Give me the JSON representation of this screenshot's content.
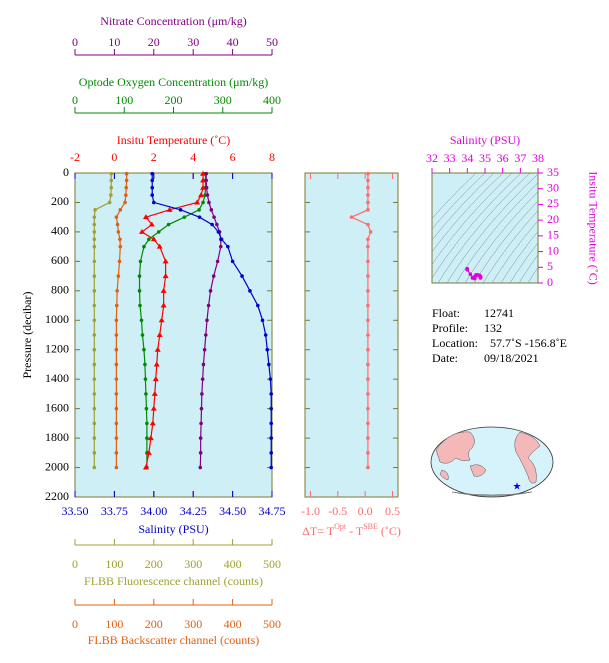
{
  "chart_data": [
    {
      "type": "profile",
      "ylabel": "Pressure (decibar)",
      "pressure": [
        5,
        50,
        100,
        150,
        200,
        250,
        300,
        350,
        400,
        450,
        500,
        600,
        700,
        800,
        900,
        1000,
        1100,
        1200,
        1300,
        1400,
        1500,
        1600,
        1700,
        1800,
        1900,
        2000
      ],
      "ylim": [
        0,
        2200
      ],
      "yticks": [
        0,
        200,
        400,
        600,
        800,
        1000,
        1200,
        1400,
        1600,
        1800,
        2000,
        2200
      ],
      "series": [
        {
          "name": "Nitrate Concentration (μm/kg)",
          "color": "#800080",
          "marker": "circle",
          "xlim": [
            0,
            50
          ],
          "xticks": [
            0,
            10,
            20,
            30,
            40,
            50
          ],
          "values": [
            33.3,
            33.3,
            33.4,
            33.6,
            34.0,
            34.6,
            35.3,
            36.0,
            36.7,
            37.0,
            37.0,
            36.2,
            35.2,
            34.4,
            33.9,
            33.5,
            33.2,
            32.9,
            32.6,
            32.4,
            32.2,
            32.1,
            32.0,
            31.9,
            31.9,
            31.8
          ]
        },
        {
          "name": "Optode Oxygen Concentration (μm/kg)",
          "color": "#008a00",
          "marker": "circle",
          "xlim": [
            0,
            400
          ],
          "xticks": [
            0,
            100,
            200,
            300,
            400
          ],
          "values": [
            265,
            265,
            265,
            264,
            260,
            252,
            222,
            190,
            170,
            150,
            140,
            133,
            131,
            131,
            132,
            135,
            137,
            140,
            142,
            143,
            144,
            145,
            146,
            146,
            146,
            146
          ]
        },
        {
          "name": "Insitu Temperature (˚C)",
          "color": "#ff0000",
          "marker": "triangle",
          "xlim": [
            -2,
            8
          ],
          "xticks": [
            -2,
            0,
            2,
            4,
            6,
            8
          ],
          "values": [
            4.5,
            4.5,
            4.5,
            4.4,
            4.2,
            2.8,
            1.6,
            1.9,
            1.4,
            2.0,
            2.3,
            2.6,
            2.6,
            2.5,
            2.5,
            2.4,
            2.3,
            2.2,
            2.15,
            2.1,
            2.05,
            2.0,
            1.95,
            1.85,
            1.75,
            1.6
          ]
        },
        {
          "name": "Salinity (PSU)",
          "color": "#0000cc",
          "marker": "circle",
          "xlim": [
            33.5,
            34.75
          ],
          "xticks": [
            {
              "value": 33.5,
              "label": "33.50"
            },
            33.75,
            {
              "value": 34,
              "label": "34.00"
            },
            34.25,
            {
              "value": 34.5,
              "label": "34.50"
            },
            34.75
          ],
          "values": [
            33.99,
            33.99,
            33.99,
            33.99,
            34.0,
            34.17,
            34.29,
            34.37,
            34.41,
            34.43,
            34.47,
            34.5,
            34.56,
            34.61,
            34.66,
            34.69,
            34.71,
            34.72,
            34.73,
            34.74,
            34.745,
            34.745,
            34.745,
            34.745,
            34.745,
            34.745
          ]
        },
        {
          "name": "FLBB Fluorescence channel (counts)",
          "color": "#a0a030",
          "marker": "circle",
          "xlim": [
            0,
            500
          ],
          "xticks": [
            0,
            100,
            200,
            300,
            400,
            500
          ],
          "values": [
            92,
            92,
            92,
            91,
            88,
            51,
            49,
            49,
            49,
            49,
            49,
            49,
            49,
            49,
            49,
            49,
            49,
            49,
            49,
            49,
            49,
            49,
            49,
            49,
            49,
            49
          ]
        },
        {
          "name": "FLBB Backscatter channel (counts)",
          "color": "#e06010",
          "marker": "circle",
          "xlim": [
            0,
            500
          ],
          "xticks": [
            0,
            100,
            200,
            300,
            400,
            500
          ],
          "values": [
            131,
            131,
            130,
            129,
            127,
            115,
            105,
            108,
            110,
            114,
            115,
            113,
            110,
            107,
            106,
            105,
            105,
            105,
            105,
            105,
            105,
            105,
            105,
            105,
            105,
            105
          ]
        }
      ]
    },
    {
      "type": "delta",
      "xlabel": [
        "ΔT= T",
        "Opt",
        " - T",
        "SBE",
        " (˚C)"
      ],
      "color": "#ff6a6a",
      "xlim": [
        -1.1,
        0.6
      ],
      "xticks": [
        {
          "value": -1,
          "label": "-1.0"
        },
        -0.5,
        {
          "value": 0,
          "label": "0.0"
        },
        0.5
      ],
      "values": [
        0.05,
        0.05,
        0.05,
        0.05,
        0.05,
        0.05,
        -0.25,
        0.05,
        0.1,
        0.05,
        0.05,
        0.05,
        0.05,
        0.05,
        0.05,
        0.05,
        0.05,
        0.05,
        0.05,
        0.05,
        0.05,
        0.05,
        0.05,
        0.05,
        0.05,
        0.05
      ]
    },
    {
      "type": "ts",
      "xlabel": "Salinity (PSU)",
      "ylabel": "Insitu Temperature (˚C)",
      "color": "#e000e0",
      "xlim": [
        32,
        38
      ],
      "xticks": [
        32,
        33,
        34,
        35,
        36,
        37,
        38
      ],
      "ylim": [
        0,
        35
      ],
      "yticks": [
        0,
        5,
        10,
        15,
        20,
        25,
        30,
        35
      ]
    }
  ],
  "float_info": [
    [
      "Float:",
      "12741"
    ],
    [
      "Profile:",
      "132"
    ],
    [
      "Location:",
      "57.7˚S  -156.8˚E"
    ],
    [
      "Date:",
      "09/18/2021"
    ]
  ]
}
